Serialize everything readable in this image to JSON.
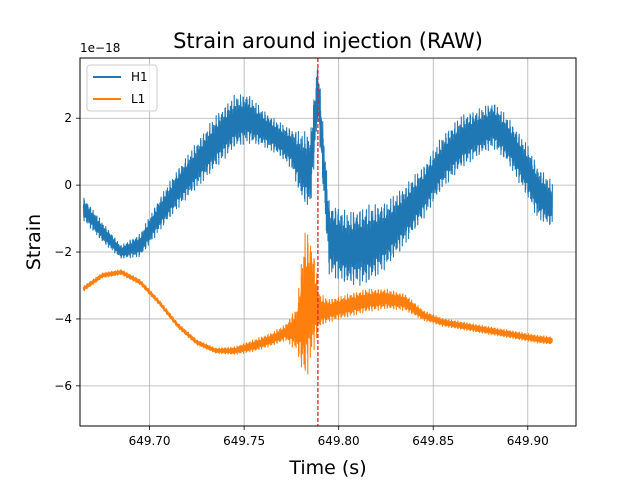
{
  "chart_data": {
    "type": "line",
    "title": "Strain around injection (RAW)",
    "xlabel": "Time (s)",
    "ylabel": "Strain",
    "y_offset_label": "1e−18",
    "xlim": [
      649.6632,
      649.9255
    ],
    "ylim": [
      -7.2,
      3.8
    ],
    "x_ticks": [
      649.7,
      649.75,
      649.8,
      649.85,
      649.9
    ],
    "x_tick_labels": [
      "649.70",
      "649.75",
      "649.80",
      "649.85",
      "649.90"
    ],
    "y_ticks": [
      -6,
      -4,
      -2,
      0,
      2
    ],
    "y_tick_labels": [
      "−6",
      "−4",
      "−2",
      "0",
      "2"
    ],
    "grid": true,
    "legend_position": "top-left",
    "marker_line": {
      "x": 649.789,
      "color": "#d62728",
      "style": "dashed"
    },
    "series": [
      {
        "name": "H1",
        "color": "#1f77b4",
        "x": [
          649.665,
          649.675,
          649.685,
          649.695,
          649.705,
          649.715,
          649.725,
          649.735,
          649.745,
          649.752,
          649.76,
          649.768,
          649.775,
          649.78,
          649.785,
          649.789,
          649.795,
          649.805,
          649.815,
          649.825,
          649.835,
          649.845,
          649.855,
          649.865,
          649.875,
          649.882,
          649.89,
          649.9,
          649.905,
          649.913
        ],
        "values": [
          -0.7,
          -1.4,
          -2.0,
          -1.8,
          -0.9,
          -0.1,
          0.6,
          1.3,
          1.9,
          2.0,
          1.7,
          1.4,
          1.1,
          0.6,
          0.4,
          2.9,
          -1.6,
          -1.9,
          -1.8,
          -1.5,
          -0.9,
          -0.2,
          0.7,
          1.3,
          1.6,
          1.8,
          1.3,
          0.4,
          -0.2,
          -0.6
        ],
        "band": [
          0.35,
          0.3,
          0.2,
          0.35,
          0.5,
          0.6,
          0.7,
          0.8,
          0.8,
          0.75,
          0.55,
          0.5,
          0.6,
          1.0,
          1.2,
          0.9,
          1.1,
          1.1,
          1.2,
          1.0,
          0.9,
          0.8,
          0.8,
          0.8,
          0.7,
          0.7,
          0.7,
          0.8,
          0.8,
          0.7
        ]
      },
      {
        "name": "L1",
        "color": "#ff7f0e",
        "x": [
          649.665,
          649.675,
          649.685,
          649.695,
          649.705,
          649.715,
          649.725,
          649.735,
          649.745,
          649.755,
          649.765,
          649.772,
          649.778,
          649.782,
          649.786,
          649.79,
          649.795,
          649.805,
          649.815,
          649.825,
          649.835,
          649.845,
          649.855,
          649.865,
          649.875,
          649.885,
          649.895,
          649.905,
          649.913
        ],
        "values": [
          -3.1,
          -2.7,
          -2.6,
          -2.9,
          -3.5,
          -4.2,
          -4.7,
          -4.95,
          -4.95,
          -4.8,
          -4.6,
          -4.4,
          -4.3,
          -3.6,
          -3.4,
          -3.75,
          -3.75,
          -3.6,
          -3.45,
          -3.4,
          -3.5,
          -3.9,
          -4.1,
          -4.2,
          -4.3,
          -4.4,
          -4.5,
          -4.6,
          -4.65
        ],
        "band": [
          0.08,
          0.08,
          0.08,
          0.08,
          0.08,
          0.08,
          0.08,
          0.08,
          0.12,
          0.18,
          0.2,
          0.25,
          0.7,
          2.4,
          1.8,
          0.5,
          0.35,
          0.35,
          0.35,
          0.3,
          0.25,
          0.15,
          0.12,
          0.12,
          0.12,
          0.12,
          0.12,
          0.12,
          0.12
        ]
      }
    ]
  }
}
